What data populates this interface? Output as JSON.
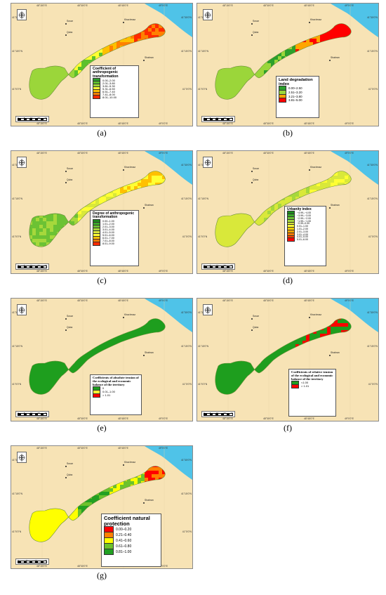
{
  "shared": {
    "lon_ticks": [
      "48°15'0\"E",
      "48°30'0\"E",
      "48°45'0\"E",
      "49°0'0\"E"
    ],
    "lat_ticks": [
      "41°30'0\"N",
      "41°15'0\"N",
      "41°0'0\"N"
    ],
    "cities": [
      "Khachmaz",
      "Susar",
      "Quba",
      "Shabran"
    ],
    "compass_icon": "north-arrow-compass-icon",
    "sea_color": "#4fc3e8",
    "land_color": "#f7e3b5"
  },
  "panels": [
    {
      "id": "a",
      "caption": "(a)",
      "scale_labels": [
        "0",
        "5",
        "10",
        "20",
        "30"
      ],
      "legend_title": "Coefficient of anthropogenic transformation",
      "legend": [
        {
          "label": "0.00–2.00",
          "color": "#2ca02c"
        },
        {
          "label": "2.01–3.80",
          "color": "#5cc12c"
        },
        {
          "label": "3.81–5.30",
          "color": "#9bd63a"
        },
        {
          "label": "5.31–6.50",
          "color": "#ffff33"
        },
        {
          "label": "6.51–7.40",
          "color": "#ffc000"
        },
        {
          "label": "7.41–8.00",
          "color": "#ff8000"
        },
        {
          "label": "8.01–10.00",
          "color": "#ff2a00"
        }
      ]
    },
    {
      "id": "b",
      "caption": "(b)",
      "scale_labels": [
        "0",
        "5",
        "10",
        "20",
        "30"
      ],
      "legend_title": "Land degradation index",
      "legend": [
        {
          "label": "0.00–2.50",
          "color": "#2ca02c"
        },
        {
          "label": "2.51–3.20",
          "color": "#9bd63a"
        },
        {
          "label": "3.21–3.80",
          "color": "#ffa500"
        },
        {
          "label": "3.81–5.00",
          "color": "#ff0000"
        }
      ]
    },
    {
      "id": "c",
      "caption": "(c)",
      "scale_labels": [
        "0",
        "5",
        "10",
        "20",
        "30"
      ],
      "legend_title": "Degree of anthropogenic transformation",
      "legend": [
        {
          "label": "0.00–1.00",
          "color": "#1e8c1e"
        },
        {
          "label": "1.01–2.00",
          "color": "#3aab2a"
        },
        {
          "label": "2.01–3.00",
          "color": "#6cc234"
        },
        {
          "label": "3.01–4.00",
          "color": "#a6d83c"
        },
        {
          "label": "4.01–5.00",
          "color": "#d9e83a"
        },
        {
          "label": "5.01–6.00",
          "color": "#ffff33"
        },
        {
          "label": "6.01–7.00",
          "color": "#ffc000"
        },
        {
          "label": "7.01–8.00",
          "color": "#ff7a00"
        },
        {
          "label": "8.01–9.00",
          "color": "#ff2a00"
        }
      ]
    },
    {
      "id": "d",
      "caption": "(d)",
      "scale_labels": [
        "0",
        "5",
        "10",
        "20",
        "30"
      ],
      "legend_title": "Urbanity index",
      "legend": [
        {
          "label": "−4.99–−4.00",
          "color": "#1e8c1e"
        },
        {
          "label": "−3.99–−3.00",
          "color": "#3aab2a"
        },
        {
          "label": "−2.99–−2.00",
          "color": "#6cc234"
        },
        {
          "label": "−1.99–−1.00",
          "color": "#a6d83c"
        },
        {
          "label": "−0.99–0.00",
          "color": "#d9e83a"
        },
        {
          "label": "0.01–1.00",
          "color": "#ffff33"
        },
        {
          "label": "1.01–2.00",
          "color": "#ffd000"
        },
        {
          "label": "2.01–3.00",
          "color": "#ffa500"
        },
        {
          "label": "3.01–4.00",
          "color": "#ff7a00"
        },
        {
          "label": "4.01–5.00",
          "color": "#ff4500"
        },
        {
          "label": "5.01–6.00",
          "color": "#ff0000"
        }
      ]
    },
    {
      "id": "e",
      "caption": "(e)",
      "scale_labels": [
        "0",
        "5",
        "10",
        "20",
        "30"
      ],
      "legend_title": "Coefficients of absolute tension of the ecological and economic balance of the territory",
      "legend": [
        {
          "label": "0",
          "color": "#1e9e1e"
        },
        {
          "label": "0.01–1.00",
          "color": "#ffff33"
        },
        {
          "label": "> 1.01",
          "color": "#ff0000"
        }
      ]
    },
    {
      "id": "f",
      "caption": "(f)",
      "scale_labels": [
        "0",
        "5",
        "10",
        "20",
        "30"
      ],
      "legend_title": "Coefficients of relative tension of the ecological and economic balance of the territory",
      "legend": [
        {
          "label": "<1.00",
          "color": "#1e9e1e"
        },
        {
          "label": "> 1.01",
          "color": "#ff0000"
        }
      ]
    },
    {
      "id": "g",
      "caption": "(g)",
      "scale_labels": [
        "0",
        "5",
        "10",
        "20"
      ],
      "legend_title": "Coefficient natural protection",
      "legend": [
        {
          "label": "0.00–0.20",
          "color": "#ff0000"
        },
        {
          "label": "0.21–0.40",
          "color": "#ff8000"
        },
        {
          "label": "0.41–0.60",
          "color": "#ffff00"
        },
        {
          "label": "0.61–0.80",
          "color": "#6cc22c"
        },
        {
          "label": "0.81–1.00",
          "color": "#22a022"
        }
      ]
    }
  ]
}
